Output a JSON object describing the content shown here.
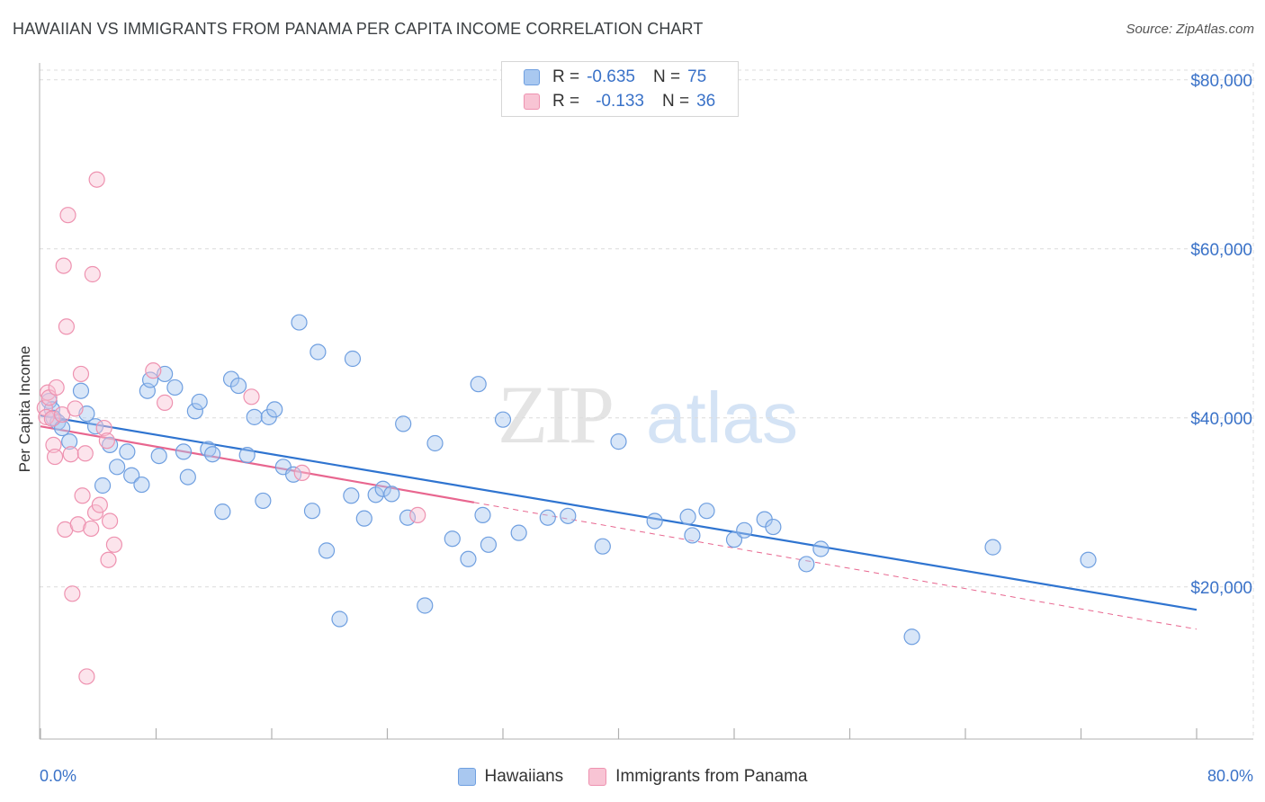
{
  "header": {
    "title": "HAWAIIAN VS IMMIGRANTS FROM PANAMA PER CAPITA INCOME CORRELATION CHART",
    "source": "Source: ZipAtlas.com"
  },
  "watermark": {
    "zip": "ZIP",
    "atlas": "atlas"
  },
  "legend": {
    "rows": [
      {
        "r_label": "R =",
        "r_value": "-0.635",
        "n_label": "N =",
        "n_value": "75",
        "color": "#a9c8f0",
        "border": "#6f9fe0"
      },
      {
        "r_label": "R =",
        "r_value": "-0.133",
        "n_label": "N =",
        "n_value": "36",
        "color": "#f8c4d4",
        "border": "#ee92b0"
      }
    ]
  },
  "bottom_legend": [
    "Hawaiians",
    "Immigrants from Panama"
  ],
  "chart_data": {
    "type": "scatter",
    "xlabel": "",
    "ylabel": "Per Capita Income",
    "xlim": [
      0,
      80
    ],
    "ylim": [
      2000,
      82000
    ],
    "x_tick_labels": [
      "0.0%",
      "80.0%"
    ],
    "y_ticks": [
      20000,
      40000,
      60000,
      80000
    ],
    "y_tick_labels": [
      "$20,000",
      "$40,000",
      "$60,000",
      "$80,000"
    ],
    "grid": true,
    "colors": {
      "hawaiians": "#6f9fe0",
      "panama": "#ee92b0",
      "trend_blue": "#2f74d0",
      "trend_pink": "#e8668f",
      "tick_label": "#3a72c8"
    },
    "series": [
      {
        "name": "Hawaiians",
        "points": [
          [
            0.6,
            42000
          ],
          [
            0.8,
            41000
          ],
          [
            0.9,
            40000
          ],
          [
            1.2,
            39500
          ],
          [
            1.5,
            38800
          ],
          [
            2.0,
            37200
          ],
          [
            2.8,
            43200
          ],
          [
            3.2,
            40500
          ],
          [
            3.8,
            39000
          ],
          [
            4.3,
            32000
          ],
          [
            4.8,
            36800
          ],
          [
            5.3,
            34200
          ],
          [
            6.0,
            36000
          ],
          [
            6.3,
            33200
          ],
          [
            7.0,
            32100
          ],
          [
            7.4,
            43200
          ],
          [
            7.6,
            44500
          ],
          [
            8.2,
            35500
          ],
          [
            8.6,
            45200
          ],
          [
            9.3,
            43600
          ],
          [
            9.9,
            36000
          ],
          [
            10.2,
            33000
          ],
          [
            10.7,
            40800
          ],
          [
            11.0,
            41900
          ],
          [
            11.6,
            36300
          ],
          [
            11.9,
            35700
          ],
          [
            12.6,
            28900
          ],
          [
            13.2,
            44600
          ],
          [
            13.7,
            43800
          ],
          [
            14.3,
            35600
          ],
          [
            14.8,
            40100
          ],
          [
            15.4,
            30200
          ],
          [
            15.8,
            40100
          ],
          [
            16.2,
            41000
          ],
          [
            16.8,
            34200
          ],
          [
            17.5,
            33300
          ],
          [
            17.9,
            51300
          ],
          [
            18.8,
            29000
          ],
          [
            19.2,
            47800
          ],
          [
            19.8,
            24300
          ],
          [
            20.7,
            16200
          ],
          [
            21.5,
            30800
          ],
          [
            21.6,
            47000
          ],
          [
            22.4,
            28100
          ],
          [
            23.2,
            30900
          ],
          [
            23.7,
            31600
          ],
          [
            24.3,
            31000
          ],
          [
            25.1,
            39300
          ],
          [
            25.4,
            28200
          ],
          [
            26.6,
            17800
          ],
          [
            27.3,
            37000
          ],
          [
            28.5,
            25700
          ],
          [
            29.6,
            23300
          ],
          [
            30.3,
            44000
          ],
          [
            30.6,
            28500
          ],
          [
            31.0,
            25000
          ],
          [
            32.0,
            39800
          ],
          [
            33.1,
            26400
          ],
          [
            35.1,
            28200
          ],
          [
            36.5,
            28400
          ],
          [
            38.9,
            24800
          ],
          [
            40.0,
            37200
          ],
          [
            42.5,
            27800
          ],
          [
            44.8,
            28300
          ],
          [
            45.1,
            26100
          ],
          [
            46.1,
            29000
          ],
          [
            48.0,
            25600
          ],
          [
            48.7,
            26700
          ],
          [
            50.1,
            28000
          ],
          [
            50.7,
            27100
          ],
          [
            53.0,
            22700
          ],
          [
            54.0,
            24500
          ],
          [
            60.3,
            14100
          ],
          [
            65.9,
            24700
          ],
          [
            72.5,
            23200
          ]
        ],
        "trend": {
          "x0": 0,
          "y0": 40300,
          "x1": 80,
          "y1": 17300
        }
      },
      {
        "name": "Immigrants from Panama",
        "points": [
          [
            0.3,
            41200
          ],
          [
            0.4,
            40100
          ],
          [
            0.5,
            43000
          ],
          [
            0.6,
            42400
          ],
          [
            0.8,
            39900
          ],
          [
            0.9,
            36800
          ],
          [
            1.0,
            35400
          ],
          [
            1.1,
            43600
          ],
          [
            1.5,
            40400
          ],
          [
            1.6,
            58000
          ],
          [
            1.7,
            26800
          ],
          [
            1.8,
            50800
          ],
          [
            1.9,
            64000
          ],
          [
            2.1,
            35700
          ],
          [
            2.2,
            19200
          ],
          [
            2.4,
            41100
          ],
          [
            2.6,
            27400
          ],
          [
            2.8,
            45200
          ],
          [
            2.9,
            30800
          ],
          [
            3.1,
            35800
          ],
          [
            3.2,
            9400
          ],
          [
            3.5,
            26900
          ],
          [
            3.6,
            57000
          ],
          [
            3.8,
            28800
          ],
          [
            3.9,
            68200
          ],
          [
            4.1,
            29700
          ],
          [
            4.4,
            38800
          ],
          [
            4.6,
            37300
          ],
          [
            4.7,
            23200
          ],
          [
            4.8,
            27800
          ],
          [
            5.1,
            25000
          ],
          [
            7.8,
            45600
          ],
          [
            8.6,
            41800
          ],
          [
            14.6,
            42500
          ],
          [
            18.1,
            33500
          ],
          [
            26.1,
            28500
          ]
        ],
        "trend": {
          "x0": 0,
          "y0": 39000,
          "x1": 30,
          "y1": 30000
        },
        "trend_extension": {
          "x0": 30,
          "y0": 30000,
          "x1": 80,
          "y1": 15000
        }
      }
    ]
  }
}
